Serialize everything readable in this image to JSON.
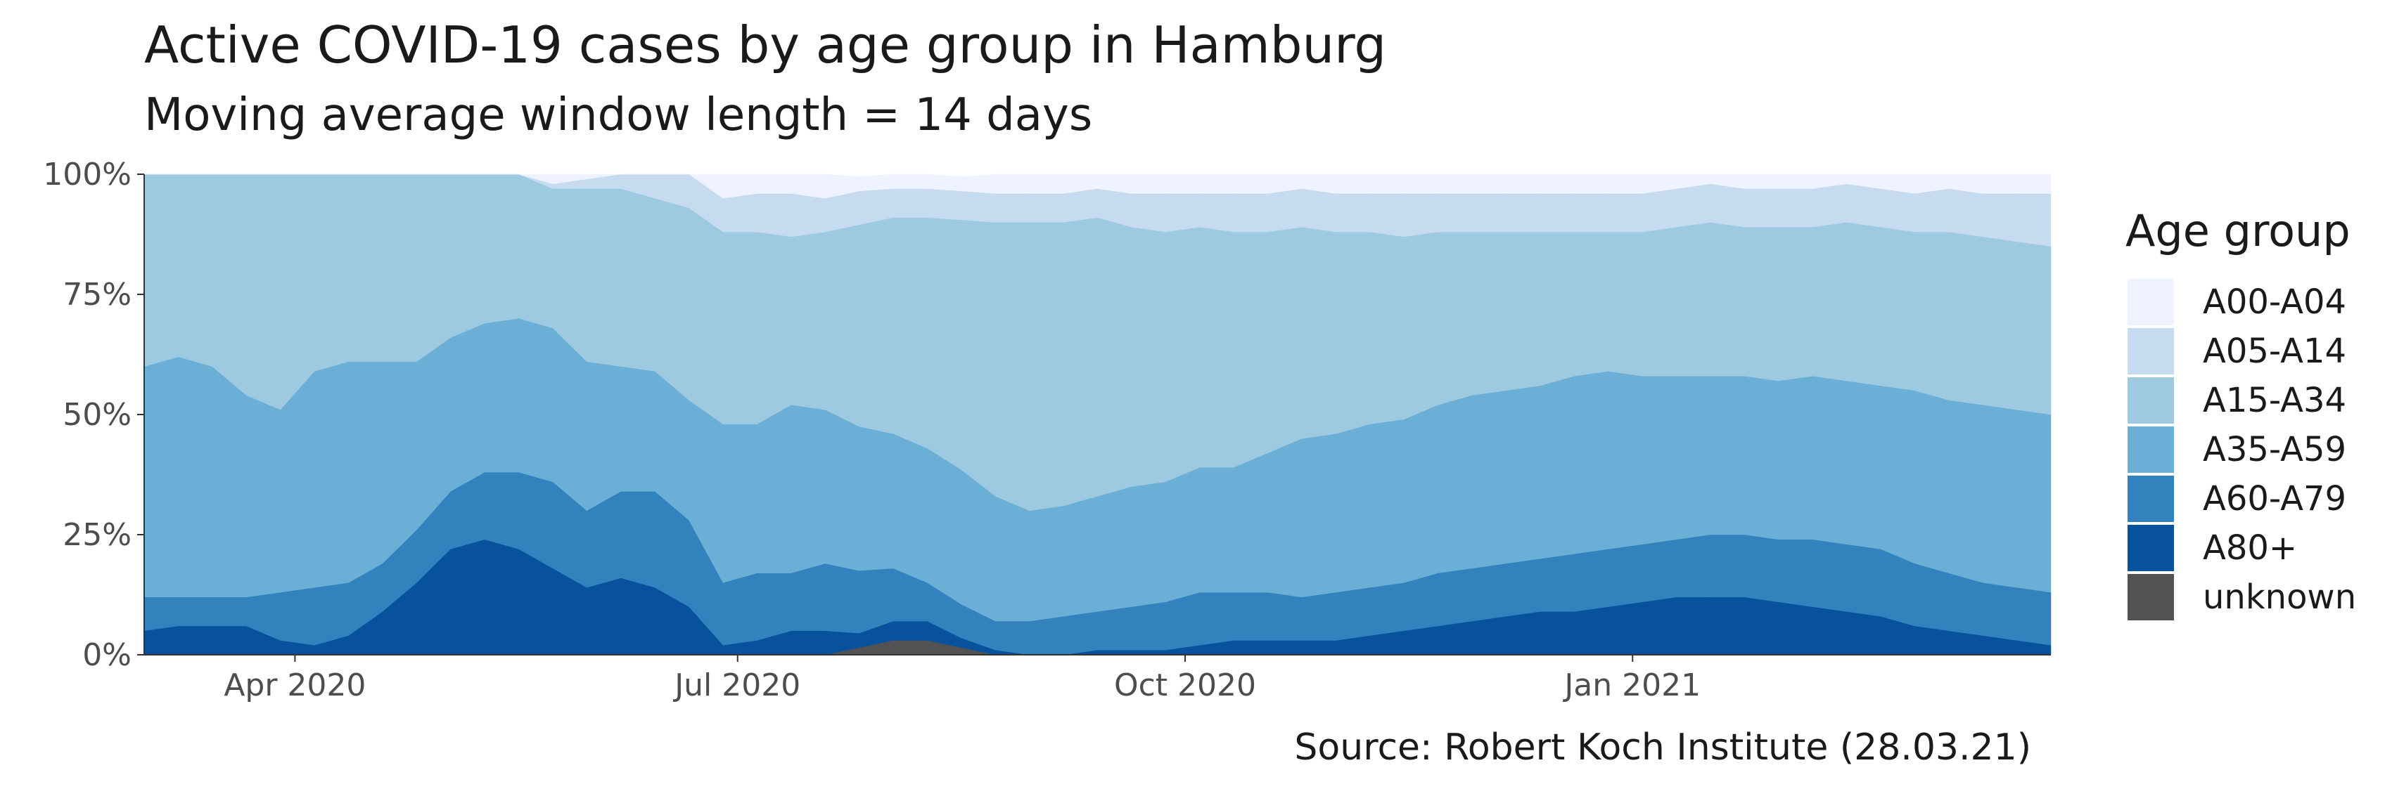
{
  "chart_data": {
    "type": "area",
    "stacked": true,
    "normalized": true,
    "title": "Active COVID-19 cases by age group in Hamburg",
    "subtitle": "Moving average window length = 14 days",
    "caption": "Source: Robert Koch Institute (28.03.21)",
    "x_ticks": [
      {
        "date": "2020-04-01",
        "label": "Apr 2020"
      },
      {
        "date": "2020-07-01",
        "label": "Jul 2020"
      },
      {
        "date": "2020-10-01",
        "label": "Oct 2020"
      },
      {
        "date": "2021-01-01",
        "label": "Jan 2021"
      }
    ],
    "xlim": [
      "2020-03-01",
      "2021-03-28"
    ],
    "y_ticks": [
      {
        "value": 0,
        "label": "0%"
      },
      {
        "value": 25,
        "label": "25%"
      },
      {
        "value": 50,
        "label": "50%"
      },
      {
        "value": 75,
        "label": "75%"
      },
      {
        "value": 100,
        "label": "100%"
      }
    ],
    "ylim": [
      0,
      100
    ],
    "grid": false,
    "legend": {
      "title": "Age group",
      "placement": "right"
    },
    "dates": [
      "2020-03-01",
      "2020-03-08",
      "2020-03-15",
      "2020-03-22",
      "2020-03-29",
      "2020-04-05",
      "2020-04-12",
      "2020-04-19",
      "2020-04-26",
      "2020-05-03",
      "2020-05-10",
      "2020-05-17",
      "2020-05-24",
      "2020-05-31",
      "2020-06-07",
      "2020-06-14",
      "2020-06-21",
      "2020-06-28",
      "2020-07-05",
      "2020-07-12",
      "2020-07-19",
      "2020-07-26",
      "2020-08-02",
      "2020-08-09",
      "2020-08-16",
      "2020-08-23",
      "2020-08-30",
      "2020-09-06",
      "2020-09-13",
      "2020-09-20",
      "2020-09-27",
      "2020-10-04",
      "2020-10-11",
      "2020-10-18",
      "2020-10-25",
      "2020-11-01",
      "2020-11-08",
      "2020-11-15",
      "2020-11-22",
      "2020-11-29",
      "2020-12-06",
      "2020-12-13",
      "2020-12-20",
      "2020-12-27",
      "2021-01-03",
      "2021-01-10",
      "2021-01-17",
      "2021-01-24",
      "2021-01-31",
      "2021-02-07",
      "2021-02-14",
      "2021-02-21",
      "2021-02-28",
      "2021-03-07",
      "2021-03-14",
      "2021-03-21",
      "2021-03-28"
    ],
    "series": [
      {
        "name": "unknown",
        "color": "#525252",
        "values": [
          0,
          0,
          0,
          0,
          0,
          0,
          0,
          0,
          0,
          0,
          0,
          0,
          0,
          0,
          0,
          0,
          0,
          0,
          0,
          0,
          0,
          1.5,
          3,
          3,
          1.5,
          0,
          0,
          0,
          0,
          0,
          0,
          0,
          0,
          0,
          0,
          0,
          0,
          0,
          0,
          0,
          0,
          0,
          0,
          0,
          0,
          0,
          0,
          0,
          0,
          0,
          0,
          0,
          0,
          0,
          0,
          0,
          0
        ]
      },
      {
        "name": "A80+",
        "color": "#08519c",
        "values": [
          5,
          6,
          6,
          6,
          3,
          2,
          4,
          9,
          15,
          22,
          24,
          22,
          18,
          14,
          16,
          14,
          10,
          2,
          3,
          5,
          5,
          3,
          4,
          4,
          2,
          1,
          0,
          0,
          1,
          1,
          1,
          2,
          3,
          3,
          3,
          3,
          4,
          5,
          6,
          7,
          8,
          9,
          9,
          10,
          11,
          12,
          12,
          12,
          11,
          10,
          9,
          8,
          6,
          5,
          4,
          3,
          2
        ]
      },
      {
        "name": "A60-A79",
        "color": "#3182bd",
        "values": [
          7,
          6,
          6,
          6,
          10,
          12,
          11,
          10,
          11,
          12,
          14,
          16,
          18,
          16,
          18,
          20,
          18,
          13,
          14,
          12,
          14,
          13,
          11,
          8,
          7,
          6,
          7,
          8,
          8,
          9,
          10,
          11,
          10,
          10,
          9,
          10,
          10,
          10,
          11,
          11,
          11,
          11,
          12,
          12,
          12,
          12,
          13,
          13,
          13,
          14,
          14,
          14,
          13,
          12,
          11,
          11,
          11
        ]
      },
      {
        "name": "A35-A59",
        "color": "#6baed6",
        "values": [
          48,
          50,
          48,
          42,
          38,
          45,
          46,
          42,
          35,
          32,
          31,
          32,
          32,
          31,
          26,
          25,
          25,
          33,
          31,
          35,
          32,
          30,
          28,
          28,
          28,
          26,
          23,
          23,
          24,
          25,
          25,
          26,
          26,
          29,
          33,
          33,
          34,
          34,
          35,
          36,
          36,
          36,
          37,
          37,
          35,
          34,
          33,
          33,
          33,
          34,
          34,
          34,
          36,
          36,
          37,
          37,
          37
        ]
      },
      {
        "name": "A15-A34",
        "color": "#9ecae1",
        "values": [
          40,
          38,
          40,
          46,
          49,
          41,
          39,
          39,
          39,
          34,
          31,
          30,
          29,
          36,
          37,
          36,
          40,
          40,
          40,
          35,
          37,
          42,
          45,
          48,
          52,
          57,
          60,
          59,
          58,
          54,
          52,
          50,
          49,
          46,
          44,
          42,
          40,
          38,
          36,
          34,
          33,
          32,
          30,
          29,
          30,
          31,
          32,
          31,
          32,
          31,
          33,
          33,
          33,
          35,
          35,
          35,
          35
        ]
      },
      {
        "name": "A05-A14",
        "color": "#c6dbef",
        "values": [
          0,
          0,
          0,
          0,
          0,
          0,
          0,
          0,
          0,
          0,
          0,
          0,
          1,
          2,
          3,
          5,
          7,
          7,
          8,
          9,
          7,
          7,
          6,
          6,
          6,
          6,
          6,
          6,
          6,
          7,
          8,
          7,
          8,
          8,
          8,
          8,
          8,
          9,
          8,
          8,
          8,
          8,
          8,
          8,
          8,
          8,
          8,
          8,
          8,
          8,
          8,
          8,
          8,
          9,
          9,
          10,
          11
        ]
      },
      {
        "name": "A00-A04",
        "color": "#eff3ff",
        "values": [
          0,
          0,
          0,
          0,
          0,
          0,
          0,
          0,
          0,
          0,
          0,
          0,
          2,
          1,
          0,
          0,
          0,
          5,
          4,
          4,
          5,
          3,
          3,
          3,
          3,
          4,
          4,
          4,
          3,
          4,
          4,
          4,
          4,
          4,
          3,
          4,
          4,
          4,
          4,
          4,
          4,
          4,
          4,
          4,
          4,
          3,
          2,
          3,
          3,
          3,
          2,
          3,
          4,
          3,
          4,
          4,
          4
        ]
      }
    ],
    "legend_order": [
      "A00-A04",
      "A05-A14",
      "A15-A34",
      "A35-A59",
      "A60-A79",
      "A80+",
      "unknown"
    ]
  }
}
